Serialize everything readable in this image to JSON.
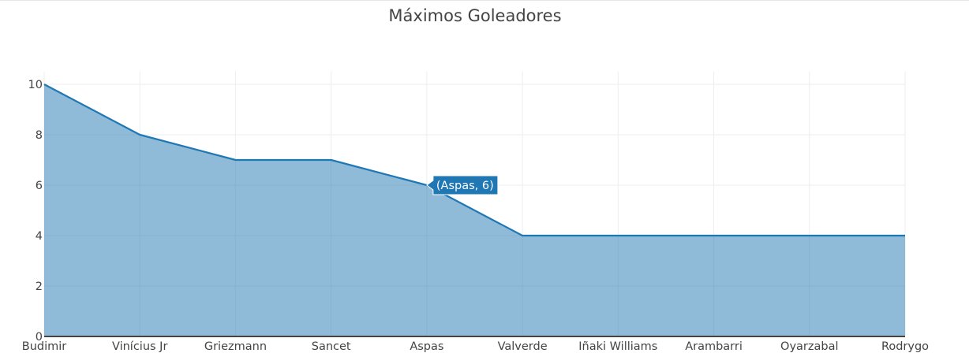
{
  "chart_data": {
    "type": "area",
    "title": "Máximos Goleadores",
    "xlabel": "",
    "ylabel": "",
    "categories": [
      "Budimir",
      "Vinícius Jr",
      "Griezmann",
      "Sancet",
      "Aspas",
      "Valverde",
      "Iñaki Williams",
      "Arambarri",
      "Oyarzabal",
      "Rodrygo"
    ],
    "values": [
      10,
      8,
      7,
      7,
      6,
      4,
      4,
      4,
      4,
      4
    ],
    "ylim": [
      0,
      10
    ],
    "yticks": [
      0,
      2,
      4,
      6,
      8,
      10
    ],
    "grid": true,
    "legend": "none",
    "color": "#1f77b4",
    "tooltip": {
      "category_index": 4,
      "text": "(Aspas, 6)"
    }
  }
}
